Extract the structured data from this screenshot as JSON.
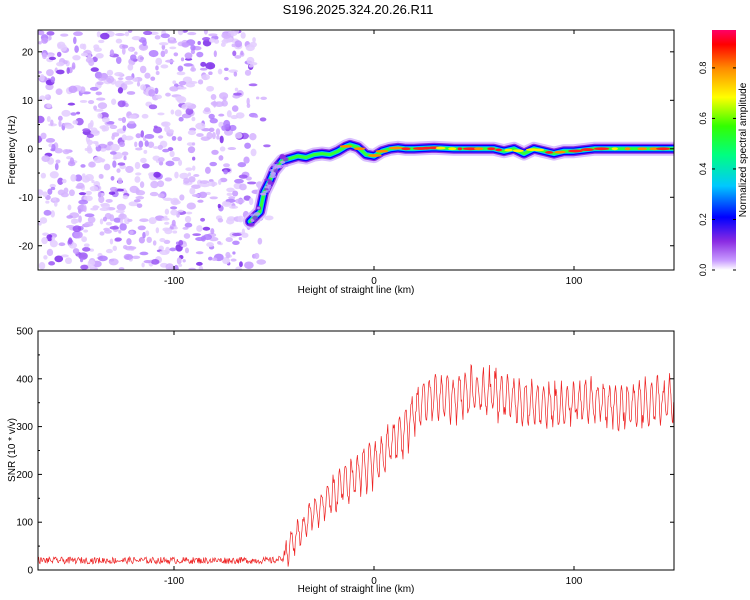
{
  "title": "S196.2025.324.20.26.R11",
  "chart_data": [
    {
      "type": "heatmap",
      "title": "S196.2025.324.20.26.R11",
      "xlabel": "Height of straight line (km)",
      "ylabel": "Frequency (Hz)",
      "xlim": [
        -168,
        150
      ],
      "ylim": [
        -25,
        24.5
      ],
      "x_ticks": [
        -100,
        0,
        100
      ],
      "y_ticks": [
        -20,
        -10,
        0,
        10,
        20
      ],
      "noise_region_x": [
        -168,
        -52
      ],
      "ridge": {
        "x": [
          -62,
          -57,
          -55,
          -52,
          -50,
          -46,
          -42,
          -38,
          -34,
          -30,
          -26,
          -22,
          -18,
          -14,
          -12,
          -8,
          -4,
          0,
          4,
          8,
          12,
          16,
          20,
          30,
          40,
          50,
          60,
          65,
          70,
          75,
          80,
          85,
          90,
          95,
          100,
          110,
          120,
          130,
          140,
          150
        ],
        "y": [
          -15,
          -13,
          -9,
          -6.5,
          -4.5,
          -2.5,
          -2,
          -1.5,
          -1.8,
          -1.2,
          -1,
          -1.2,
          -0.5,
          0.5,
          0.8,
          0.3,
          -1.2,
          -1.5,
          -0.5,
          0,
          0.2,
          0,
          0,
          0.2,
          0,
          0,
          0,
          -0.5,
          0,
          -1,
          0,
          -0.5,
          -1,
          -0.5,
          -0.5,
          0,
          0,
          0,
          0,
          0
        ]
      },
      "colorbar": {
        "label": "Normalized spectral amplitude",
        "range": [
          0.0,
          0.95
        ],
        "ticks": [
          0.0,
          0.2,
          0.4,
          0.6,
          0.8
        ],
        "tick_labels": [
          "0.0",
          "0.2",
          "0.4",
          "0.6",
          "0.8"
        ]
      }
    },
    {
      "type": "line",
      "xlabel": "Height of straight line (km)",
      "ylabel": "SNR (10 * v/v)",
      "xlim": [
        -168,
        150
      ],
      "ylim": [
        0,
        500
      ],
      "x_ticks": [
        -100,
        0,
        100
      ],
      "y_ticks": [
        0,
        100,
        200,
        300,
        400,
        500
      ],
      "series": [
        {
          "name": "SNR",
          "color": "#ee2222",
          "envelope_x": [
            -168,
            -50,
            -45,
            -40,
            -35,
            -30,
            -25,
            -20,
            -15,
            -10,
            -5,
            0,
            5,
            10,
            15,
            20,
            25,
            30,
            40,
            50,
            60,
            70,
            80,
            90,
            100,
            110,
            120,
            130,
            140,
            150
          ],
          "envelope_y": [
            20,
            20,
            25,
            60,
            95,
            120,
            140,
            160,
            180,
            200,
            215,
            225,
            245,
            265,
            290,
            330,
            355,
            360,
            365,
            375,
            370,
            355,
            345,
            345,
            350,
            350,
            345,
            345,
            355,
            350
          ],
          "oscillation_amplitude": 45,
          "oscillation_period_km": 3
        }
      ]
    }
  ],
  "colors": {
    "noise": "#7a28ea",
    "line": "#ee2222",
    "axis": "#000000"
  }
}
